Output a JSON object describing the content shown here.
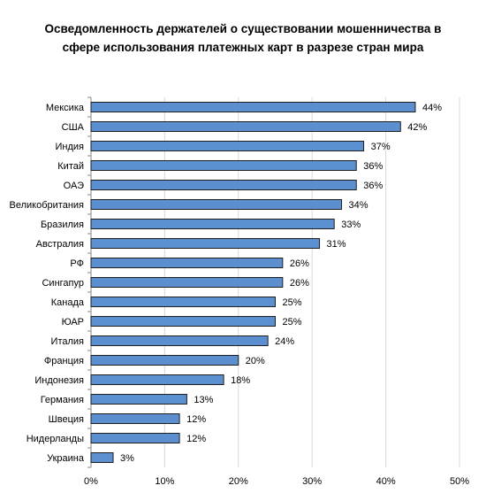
{
  "chart_data": {
    "type": "bar",
    "orientation": "horizontal",
    "title": "Осведомленность держателей о существовании мошенничества в сфере использования платежных карт  в разрезе стран мира",
    "categories": [
      "Мексика",
      "США",
      "Индия",
      "Китай",
      "ОАЭ",
      "Великобритания",
      "Бразилия",
      "Австралия",
      "РФ",
      "Сингапур",
      "Канада",
      "ЮАР",
      "Италия",
      "Франция",
      "Индонезия",
      "Германия",
      "Швеция",
      "Нидерланды",
      "Украина"
    ],
    "values": [
      44,
      42,
      37,
      36,
      36,
      34,
      33,
      31,
      26,
      26,
      25,
      25,
      24,
      20,
      18,
      13,
      12,
      12,
      3
    ],
    "data_labels": [
      "44%",
      "42%",
      "37%",
      "36%",
      "36%",
      "34%",
      "33%",
      "31%",
      "26%",
      "26%",
      "25%",
      "25%",
      "24%",
      "20%",
      "18%",
      "13%",
      "12%",
      "12%",
      "3%"
    ],
    "xlim": [
      0,
      50
    ],
    "xticks": [
      0,
      10,
      20,
      30,
      40,
      50
    ],
    "xtick_labels": [
      "0%",
      "10%",
      "20%",
      "30%",
      "40%",
      "50%"
    ],
    "xlabel": "",
    "ylabel": "",
    "grid": true,
    "legend": false,
    "colors": {
      "bar_fill": "#5b8fd0",
      "bar_stroke": "#1f1f1f",
      "grid": "#d9d9d9",
      "axis": "#868686"
    }
  }
}
